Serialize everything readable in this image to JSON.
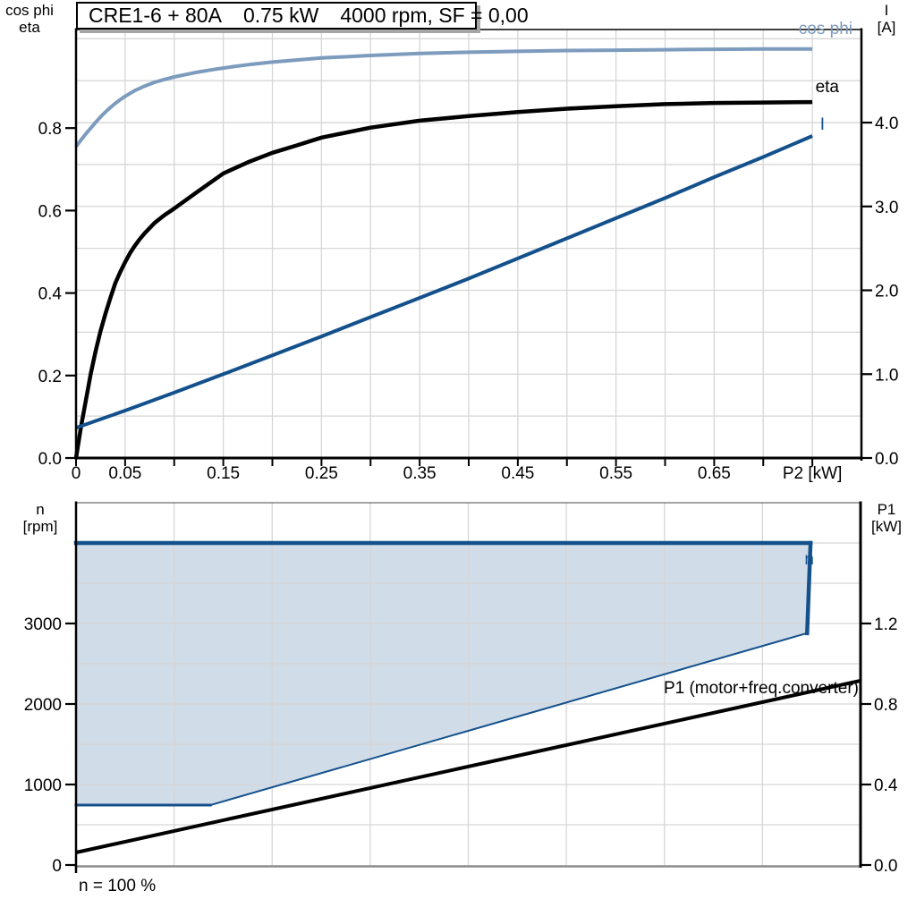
{
  "header": {
    "parts": [
      "CRE1-6 + 80A",
      "0.75 kW",
      "4000 rpm, SF = 0,00"
    ]
  },
  "colors": {
    "cos_phi_curve": "#7C9BBD",
    "eta_curve": "#000000",
    "current_curve": "#14518C",
    "envelope_stroke": "#14518C",
    "envelope_fill": "#D0DCE8",
    "grid": "#D6D6D6",
    "axis": "#000000",
    "bottom_axis_gray": "#8C8C8C"
  },
  "chart_data": [
    {
      "type": "line",
      "name": "motor-performance-curves",
      "title": "CRE1-6 + 80A  0.75 kW  4000 rpm, SF = 0,00",
      "x_axis": {
        "label": "P2 [kW]",
        "range": [
          0,
          0.8
        ],
        "ticks": [
          0,
          0.05,
          0.1,
          0.15,
          0.2,
          0.25,
          0.3,
          0.35,
          0.4,
          0.45,
          0.5,
          0.55,
          0.6,
          0.65,
          0.7,
          0.75
        ],
        "tick_labels": [
          "0",
          "0.05",
          "",
          "0.15",
          "",
          "0.25",
          "",
          "0.35",
          "",
          "0.45",
          "",
          "0.55",
          "",
          "0.65",
          "",
          "P2 [kW]"
        ]
      },
      "left_axis": {
        "title": [
          "cos phi",
          "eta"
        ],
        "range": [
          0,
          1.039
        ],
        "ticks": [
          0,
          0.2,
          0.4,
          0.6,
          0.8
        ],
        "tick_labels": [
          "0.0",
          "0.2",
          "0.4",
          "0.6",
          "0.8"
        ]
      },
      "right_axis": {
        "title": [
          "I",
          "[A]"
        ],
        "range": [
          0,
          5.11
        ],
        "ticks": [
          0,
          1,
          2,
          3,
          4
        ],
        "tick_labels": [
          "0.0",
          "1.0",
          "2.0",
          "3.0",
          "4.0"
        ]
      },
      "grid": {
        "v_step": 0.05,
        "h_axis": "right",
        "h_step": 0.5
      },
      "series": [
        {
          "name": "cos-phi",
          "label": "cos phi",
          "axis": "left",
          "color": "#7C9BBD",
          "width": 4,
          "points": [
            [
              0,
              0.755
            ],
            [
              0.005,
              0.771
            ],
            [
              0.01,
              0.786
            ],
            [
              0.015,
              0.8
            ],
            [
              0.02,
              0.814
            ],
            [
              0.025,
              0.827
            ],
            [
              0.03,
              0.839
            ],
            [
              0.035,
              0.85
            ],
            [
              0.04,
              0.86
            ],
            [
              0.045,
              0.869
            ],
            [
              0.05,
              0.877
            ],
            [
              0.06,
              0.891
            ],
            [
              0.07,
              0.902
            ],
            [
              0.08,
              0.911
            ],
            [
              0.09,
              0.918
            ],
            [
              0.1,
              0.924
            ],
            [
              0.12,
              0.934
            ],
            [
              0.14,
              0.942
            ],
            [
              0.16,
              0.949
            ],
            [
              0.18,
              0.955
            ],
            [
              0.2,
              0.96
            ],
            [
              0.25,
              0.97
            ],
            [
              0.3,
              0.976
            ],
            [
              0.35,
              0.981
            ],
            [
              0.4,
              0.984
            ],
            [
              0.45,
              0.986
            ],
            [
              0.5,
              0.988
            ],
            [
              0.55,
              0.989
            ],
            [
              0.6,
              0.99
            ],
            [
              0.65,
              0.991
            ],
            [
              0.7,
              0.992
            ],
            [
              0.75,
              0.992
            ]
          ]
        },
        {
          "name": "eta",
          "label": "eta",
          "axis": "left",
          "color": "#000000",
          "width": 4.5,
          "points": [
            [
              0,
              0
            ],
            [
              0.005,
              0.075
            ],
            [
              0.01,
              0.14
            ],
            [
              0.015,
              0.205
            ],
            [
              0.02,
              0.26
            ],
            [
              0.025,
              0.308
            ],
            [
              0.03,
              0.35
            ],
            [
              0.035,
              0.388
            ],
            [
              0.04,
              0.424
            ],
            [
              0.045,
              0.451
            ],
            [
              0.05,
              0.475
            ],
            [
              0.055,
              0.497
            ],
            [
              0.06,
              0.515
            ],
            [
              0.065,
              0.531
            ],
            [
              0.07,
              0.545
            ],
            [
              0.08,
              0.57
            ],
            [
              0.09,
              0.589
            ],
            [
              0.1,
              0.605
            ],
            [
              0.11,
              0.622
            ],
            [
              0.125,
              0.648
            ],
            [
              0.15,
              0.69
            ],
            [
              0.175,
              0.717
            ],
            [
              0.2,
              0.74
            ],
            [
              0.225,
              0.758
            ],
            [
              0.25,
              0.777
            ],
            [
              0.3,
              0.801
            ],
            [
              0.35,
              0.818
            ],
            [
              0.4,
              0.829
            ],
            [
              0.45,
              0.839
            ],
            [
              0.5,
              0.847
            ],
            [
              0.55,
              0.853
            ],
            [
              0.6,
              0.858
            ],
            [
              0.65,
              0.861
            ],
            [
              0.7,
              0.862
            ],
            [
              0.75,
              0.863
            ]
          ]
        },
        {
          "name": "current",
          "label": "I",
          "axis": "right",
          "color": "#14518C",
          "width": 4,
          "points": [
            [
              0,
              0.36
            ],
            [
              0.05,
              0.565
            ],
            [
              0.1,
              0.78
            ],
            [
              0.15,
              1.0
            ],
            [
              0.2,
              1.225
            ],
            [
              0.25,
              1.45
            ],
            [
              0.3,
              1.68
            ],
            [
              0.35,
              1.91
            ],
            [
              0.4,
              2.14
            ],
            [
              0.45,
              2.38
            ],
            [
              0.5,
              2.62
            ],
            [
              0.55,
              2.86
            ],
            [
              0.6,
              3.1
            ],
            [
              0.65,
              3.35
            ],
            [
              0.7,
              3.59
            ],
            [
              0.75,
              3.84
            ]
          ]
        }
      ]
    },
    {
      "type": "area-line",
      "name": "speed-and-input-power",
      "x_axis": {
        "label": "",
        "range": [
          0,
          0.8
        ],
        "ticks": [],
        "tick_labels": []
      },
      "left_axis": {
        "title": [
          "n",
          "[rpm]"
        ],
        "range": [
          0,
          4500
        ],
        "ticks": [
          0,
          1000,
          2000,
          3000
        ],
        "tick_labels": [
          "0",
          "1000",
          "2000",
          "3000"
        ]
      },
      "right_axis": {
        "title": [
          "P1",
          "[kW]"
        ],
        "range": [
          0,
          1.8
        ],
        "ticks": [
          0,
          0.4,
          0.8,
          1.2
        ],
        "tick_labels": [
          "0.0",
          "0.4",
          "0.8",
          "1.2"
        ]
      },
      "grid": {
        "v_step": 0.1,
        "h_axis": "left",
        "h_step": 500
      },
      "envelope": {
        "name": "speed-operating-range",
        "label": "n",
        "fill": "#D0DCE8",
        "stroke": "#14518C",
        "n_max_rpm": 4000,
        "n_min_rpm": 744,
        "points": [
          [
            0,
            4000
          ],
          [
            0.749,
            4000
          ],
          [
            0.7455,
            2880
          ],
          [
            0.137,
            744
          ],
          [
            0,
            744
          ]
        ]
      },
      "series": [
        {
          "name": "p1",
          "label": "P1 (motor+freq.converter)",
          "axis": "right",
          "color": "#000000",
          "width": 4,
          "points": [
            [
              0,
              0.062
            ],
            [
              0.8,
              0.916
            ]
          ]
        }
      ],
      "footnote": "n = 100 %"
    }
  ]
}
